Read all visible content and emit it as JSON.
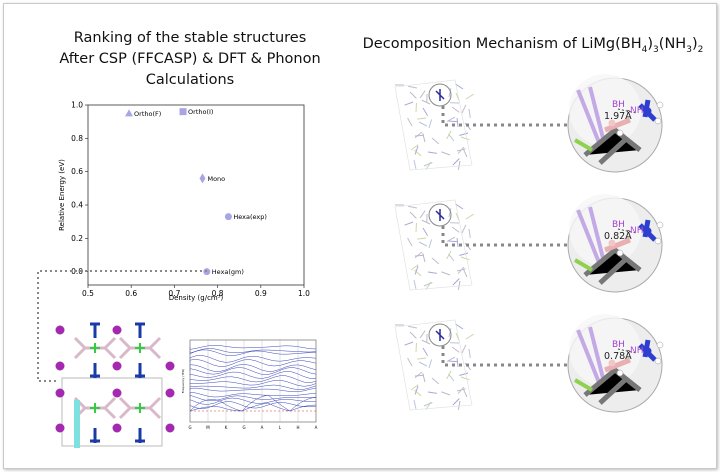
{
  "left_title": {
    "line1": "Ranking of the stable structures",
    "line2": "After CSP (FFCASP) & DFT & Phonon",
    "line3": "Calculations"
  },
  "right_title": {
    "prefix": "Decomposition Mechanism of LiMg(BH",
    "s1": "4",
    "mid1": ")",
    "s2": "3",
    "mid2": "(NH",
    "s3": "3",
    "mid3": ")",
    "s4": "2"
  },
  "chart_data": {
    "type": "scatter",
    "xlabel": "Density (g/cm³)",
    "ylabel": "Relative Energy (eV)",
    "xlim": [
      0.5,
      1.0
    ],
    "ylim": [
      -0.08,
      1.0
    ],
    "xticks": [
      "0.5",
      "0.6",
      "0.7",
      "0.8",
      "0.9",
      "1.0"
    ],
    "yticks": [
      "0.0",
      "0.2",
      "0.4",
      "0.6",
      "0.8",
      "1.0"
    ],
    "points": [
      {
        "label": "Ortho(F)",
        "x": 0.595,
        "y": 0.95,
        "marker": "triangle"
      },
      {
        "label": "Ortho(I)",
        "x": 0.72,
        "y": 0.96,
        "marker": "square"
      },
      {
        "label": "Mono",
        "x": 0.765,
        "y": 0.56,
        "marker": "diamond"
      },
      {
        "label": "Hexa(exp)",
        "x": 0.825,
        "y": 0.33,
        "marker": "circle"
      },
      {
        "label": "Hexa(gm)",
        "x": 0.775,
        "y": 0.0,
        "marker": "circle"
      }
    ],
    "marker_color": "#a8a5e6"
  },
  "phonon": {
    "ylabel": "Frequency (THz)",
    "kpoints": [
      "G",
      "M",
      "K",
      "G",
      "A",
      "L",
      "H",
      "A"
    ]
  },
  "snapshots": [
    {
      "bh": "BH",
      "nh": "NH",
      "distance": "1.97Å"
    },
    {
      "bh": "BH",
      "nh": "NH",
      "distance": "0.82Å"
    },
    {
      "bh": "BH",
      "nh": "NH",
      "distance": "0.78Å"
    }
  ]
}
